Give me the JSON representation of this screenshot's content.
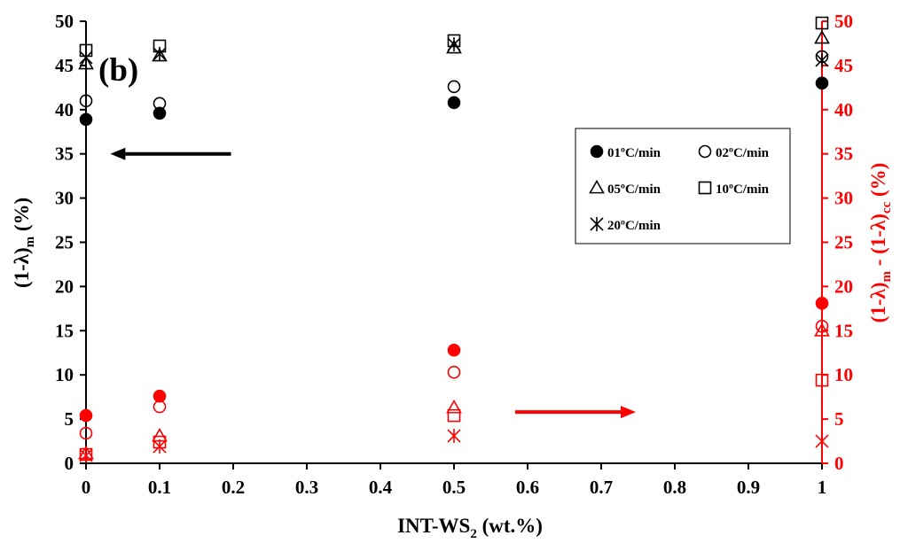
{
  "chart_data": {
    "type": "scatter",
    "panel_label": "(b)",
    "xlabel": "INT-WS",
    "xlabel_sub": "2",
    "xlabel_tail": " (wt.%)",
    "ylabel_left": "(1-λ)",
    "ylabel_left_sub": "m",
    "ylabel_left_tail": " (%)",
    "ylabel_right": "(1-λ)",
    "ylabel_right_sub1": "m",
    "ylabel_right_mid": " - (1-λ)",
    "ylabel_right_sub2": "cc",
    "ylabel_right_tail": " (%)",
    "xlim": [
      0,
      1
    ],
    "ylim_left": [
      0,
      50
    ],
    "ylim_right": [
      0,
      50
    ],
    "x_ticks": [
      "0",
      "0.1",
      "0.2",
      "0.3",
      "0.4",
      "0.5",
      "0.6",
      "0.7",
      "0.8",
      "0.9",
      "1"
    ],
    "y_ticks_left": [
      "0",
      "5",
      "10",
      "15",
      "20",
      "25",
      "30",
      "35",
      "40",
      "45",
      "50"
    ],
    "y_ticks_right": [
      "0",
      "5",
      "10",
      "15",
      "20",
      "25",
      "30",
      "35",
      "40",
      "45",
      "50"
    ],
    "axis_colors": {
      "left": "#000000",
      "right": "#ff0000"
    },
    "legend_position": "upper-right",
    "legend": [
      {
        "label": "01ºC/min",
        "marker": "filled-circle"
      },
      {
        "label": "02ºC/min",
        "marker": "open-circle"
      },
      {
        "label": "05ºC/min",
        "marker": "triangle"
      },
      {
        "label": "10ºC/min",
        "marker": "square"
      },
      {
        "label": "20ºC/min",
        "marker": "asterisk"
      }
    ],
    "x": [
      0,
      0.1,
      0.5,
      1
    ],
    "series": [
      {
        "marker": "filled-circle",
        "axis": "left",
        "color": "#000000",
        "values": [
          38.9,
          39.6,
          40.8,
          43.0
        ]
      },
      {
        "marker": "open-circle",
        "axis": "left",
        "color": "#000000",
        "values": [
          41.0,
          40.7,
          42.6,
          46.0
        ]
      },
      {
        "marker": "triangle",
        "axis": "left",
        "color": "#000000",
        "values": [
          45.2,
          46.1,
          47.0,
          48.1
        ]
      },
      {
        "marker": "square",
        "axis": "left",
        "color": "#000000",
        "values": [
          46.7,
          47.2,
          47.8,
          49.8
        ]
      },
      {
        "marker": "asterisk",
        "axis": "left",
        "color": "#000000",
        "values": [
          45.9,
          46.3,
          47.4,
          45.6
        ]
      },
      {
        "marker": "filled-circle",
        "axis": "right",
        "color": "#ff0000",
        "values": [
          5.4,
          7.6,
          12.8,
          18.1
        ]
      },
      {
        "marker": "open-circle",
        "axis": "right",
        "color": "#ff0000",
        "values": [
          3.4,
          6.4,
          10.3,
          15.5
        ]
      },
      {
        "marker": "triangle",
        "axis": "right",
        "color": "#ff0000",
        "values": [
          1.1,
          3.1,
          6.3,
          15.0
        ]
      },
      {
        "marker": "square",
        "axis": "right",
        "color": "#ff0000",
        "values": [
          1.0,
          2.4,
          5.4,
          9.4
        ]
      },
      {
        "marker": "asterisk",
        "axis": "right",
        "color": "#ff0000",
        "values": [
          0.9,
          1.9,
          3.1,
          2.5
        ]
      }
    ],
    "annotations": [
      {
        "name": "left-arrow",
        "color": "#000000",
        "direction": "left",
        "x_from": 0.197,
        "x_to": 0.033,
        "y": 35,
        "axis": "left"
      },
      {
        "name": "right-arrow",
        "color": "#ff0000",
        "direction": "right",
        "x_from": 0.583,
        "x_to": 0.747,
        "y": 5.8,
        "axis": "right"
      }
    ]
  }
}
